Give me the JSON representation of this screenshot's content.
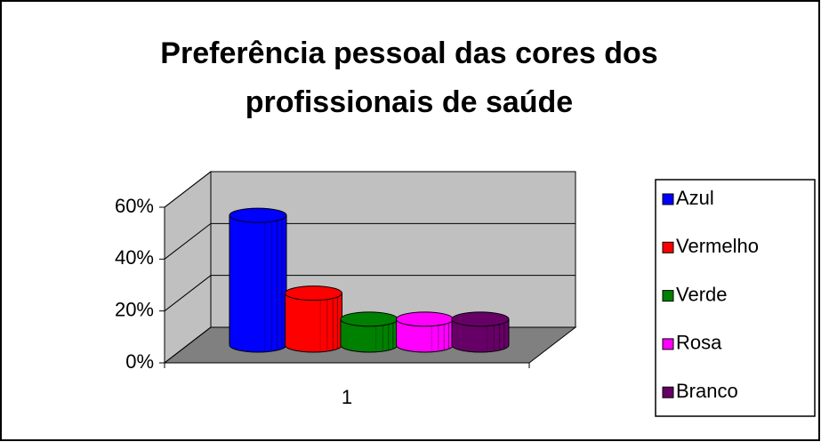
{
  "chart_data": {
    "type": "bar3d",
    "title": [
      "Preferência pessoal das cores dos",
      "profissionais de  saúde"
    ],
    "categories": [
      "1"
    ],
    "series": [
      {
        "name": "Azul",
        "color": "#0000ff",
        "values": [
          50
        ]
      },
      {
        "name": "Vermelho",
        "color": "#ff0000",
        "values": [
          20
        ]
      },
      {
        "name": "Verde",
        "color": "#008000",
        "values": [
          10
        ]
      },
      {
        "name": "Rosa",
        "color": "#ff00ff",
        "values": [
          10
        ]
      },
      {
        "name": "Branco",
        "color": "#660066",
        "values": [
          10
        ]
      }
    ],
    "ylim": [
      0,
      60
    ],
    "yticks": [
      {
        "value": 0,
        "label": "0%"
      },
      {
        "value": 20,
        "label": "20%"
      },
      {
        "value": 40,
        "label": "40%"
      },
      {
        "value": 60,
        "label": "60%"
      }
    ],
    "grid": true,
    "legend": "right"
  }
}
